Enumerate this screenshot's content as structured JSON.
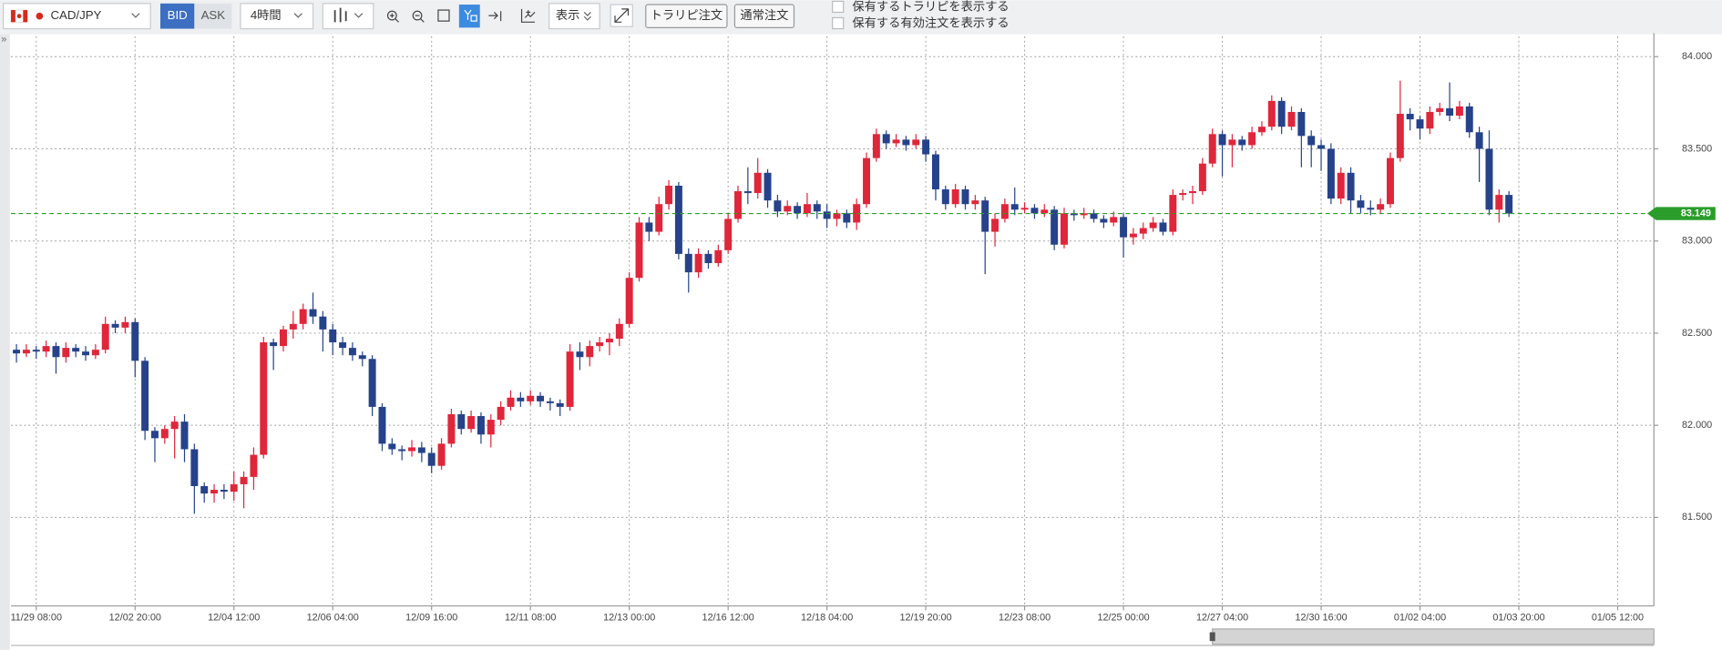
{
  "toolbar": {
    "symbol": "CAD/JPY",
    "bid": "BID",
    "ask": "ASK",
    "timeframe": "4時間",
    "display": "表示",
    "trap_order": "トラリピ注文",
    "normal_order": "通常注文",
    "show_traps": "保有するトラリピを表示する",
    "show_orders": "保有する有効注文を表示する"
  },
  "chart_data": {
    "type": "candlestick",
    "up_color": "#e0263a",
    "down_color": "#25428a",
    "price_color": "#2a9d2a",
    "grid": true,
    "categories": [
      null,
      null,
      "11/29 08:00",
      null,
      null,
      null,
      null,
      null,
      null,
      null,
      null,
      null,
      "12/02 20:00",
      null,
      null,
      null,
      null,
      null,
      null,
      null,
      null,
      null,
      "12/04 12:00",
      null,
      null,
      null,
      null,
      null,
      null,
      null,
      null,
      null,
      "12/06 04:00",
      null,
      null,
      null,
      null,
      null,
      null,
      null,
      null,
      null,
      "12/09 16:00",
      null,
      null,
      null,
      null,
      null,
      null,
      null,
      null,
      null,
      "12/11 08:00",
      null,
      null,
      null,
      null,
      null,
      null,
      null,
      null,
      null,
      "12/13 00:00",
      null,
      null,
      null,
      null,
      null,
      null,
      null,
      null,
      null,
      "12/16 12:00",
      null,
      null,
      null,
      null,
      null,
      null,
      null,
      null,
      null,
      "12/18 04:00",
      null,
      null,
      null,
      null,
      null,
      null,
      null,
      null,
      null,
      "12/19 20:00",
      null,
      null,
      null,
      null,
      null,
      null,
      null,
      null,
      null,
      "12/23 08:00",
      null,
      null,
      null,
      null,
      null,
      null,
      null,
      null,
      null,
      "12/25 00:00",
      null,
      null,
      null,
      null,
      null,
      null,
      null,
      null,
      null,
      "12/27 04:00",
      null,
      null,
      null,
      null,
      null,
      null,
      null,
      null,
      null,
      "12/30 16:00",
      null,
      null,
      null,
      null,
      null,
      null,
      null,
      null,
      null,
      "01/02 04:00",
      null,
      null,
      null,
      null,
      null,
      null,
      null,
      null,
      null,
      "01/03 20:00",
      null,
      null,
      null,
      null,
      null,
      null,
      null,
      null,
      null,
      "01/05 12:00"
    ],
    "open": [
      82.41,
      82.39,
      82.41,
      82.4,
      82.43,
      82.37,
      82.42,
      82.4,
      82.38,
      82.41,
      82.55,
      82.53,
      82.56,
      82.35,
      81.97,
      81.93,
      81.98,
      82.02,
      81.87,
      81.67,
      81.63,
      81.65,
      81.64,
      81.68,
      81.72,
      81.84,
      82.45,
      82.43,
      82.52,
      82.55,
      82.63,
      82.59,
      82.52,
      82.45,
      82.42,
      82.38,
      82.36,
      82.1,
      81.9,
      81.87,
      81.86,
      81.88,
      81.85,
      81.78,
      81.9,
      82.06,
      81.98,
      82.05,
      81.95,
      82.03,
      82.1,
      82.15,
      82.13,
      82.16,
      82.13,
      82.12,
      82.1,
      82.4,
      82.37,
      82.43,
      82.45,
      82.47,
      82.55,
      82.8,
      83.1,
      83.05,
      83.2,
      83.3,
      82.93,
      82.83,
      82.93,
      82.88,
      82.95,
      83.12,
      83.27,
      83.26,
      83.37,
      83.22,
      83.16,
      83.19,
      83.15,
      83.2,
      83.16,
      83.12,
      83.15,
      83.1,
      83.2,
      83.45,
      83.58,
      83.53,
      83.55,
      83.52,
      83.55,
      83.47,
      83.28,
      83.2,
      83.28,
      83.2,
      83.22,
      83.05,
      83.12,
      83.2,
      83.17,
      83.18,
      83.15,
      83.17,
      82.98,
      83.15,
      83.14,
      83.15,
      83.12,
      83.1,
      83.13,
      83.02,
      83.04,
      83.07,
      83.1,
      83.05,
      83.25,
      83.26,
      83.27,
      83.42,
      83.58,
      83.52,
      83.55,
      83.52,
      83.59,
      83.62,
      83.76,
      83.62,
      83.7,
      83.57,
      83.52,
      83.5,
      83.23,
      83.37,
      83.22,
      83.18,
      83.17,
      83.2,
      83.45,
      83.69,
      83.66,
      83.61,
      83.7,
      83.72,
      83.68,
      83.73,
      83.59,
      83.5,
      83.17,
      83.25,
      null,
      null,
      null,
      null,
      null,
      null,
      null,
      null,
      null,
      null,
      null
    ],
    "high": [
      82.44,
      82.44,
      82.43,
      82.46,
      82.45,
      82.45,
      82.44,
      82.43,
      82.44,
      82.59,
      82.57,
      82.59,
      82.58,
      82.37,
      81.99,
      82.0,
      82.05,
      82.06,
      81.9,
      81.69,
      81.68,
      81.68,
      81.75,
      81.75,
      81.88,
      82.48,
      82.47,
      82.54,
      82.62,
      82.66,
      82.72,
      82.62,
      82.55,
      82.48,
      82.45,
      82.4,
      82.38,
      82.12,
      81.93,
      81.89,
      81.92,
      81.91,
      81.88,
      81.93,
      82.09,
      82.08,
      82.08,
      82.07,
      82.06,
      82.13,
      82.19,
      82.18,
      82.19,
      82.18,
      82.15,
      82.14,
      82.44,
      82.45,
      82.46,
      82.48,
      82.5,
      82.58,
      82.83,
      83.13,
      83.13,
      83.24,
      83.33,
      83.32,
      82.96,
      82.96,
      82.95,
      82.98,
      83.15,
      83.3,
      83.4,
      83.45,
      83.39,
      83.25,
      83.22,
      83.21,
      83.26,
      83.22,
      83.2,
      83.17,
      83.17,
      83.23,
      83.48,
      83.61,
      83.6,
      83.58,
      83.57,
      83.58,
      83.57,
      83.49,
      83.3,
      83.31,
      83.3,
      83.25,
      83.24,
      83.15,
      83.23,
      83.29,
      83.21,
      83.2,
      83.2,
      83.19,
      83.18,
      83.17,
      83.18,
      83.17,
      83.14,
      83.16,
      83.15,
      83.07,
      83.1,
      83.13,
      83.12,
      83.28,
      83.28,
      83.3,
      83.45,
      83.61,
      83.6,
      83.58,
      83.57,
      83.62,
      83.65,
      83.79,
      83.78,
      83.73,
      83.72,
      83.6,
      83.55,
      83.53,
      83.4,
      83.4,
      83.25,
      83.22,
      83.23,
      83.48,
      83.87,
      83.72,
      83.68,
      83.73,
      83.75,
      83.86,
      83.76,
      83.75,
      83.62,
      83.6,
      83.28,
      83.27,
      null,
      null,
      null,
      null,
      null,
      null,
      null,
      null,
      null,
      null,
      null
    ],
    "low": [
      82.34,
      82.37,
      82.36,
      82.37,
      82.28,
      82.34,
      82.37,
      82.35,
      82.36,
      82.39,
      82.5,
      82.5,
      82.26,
      81.92,
      81.8,
      81.9,
      81.82,
      81.8,
      81.52,
      81.58,
      81.58,
      81.6,
      81.59,
      81.55,
      81.65,
      81.82,
      82.3,
      82.4,
      82.47,
      82.52,
      82.55,
      82.4,
      82.38,
      82.38,
      82.35,
      82.32,
      82.05,
      81.86,
      81.84,
      81.81,
      81.83,
      81.8,
      81.74,
      81.76,
      81.88,
      81.95,
      81.96,
      81.9,
      81.88,
      82.0,
      82.08,
      82.1,
      82.11,
      82.1,
      82.08,
      82.05,
      82.08,
      82.3,
      82.32,
      82.4,
      82.38,
      82.43,
      82.53,
      82.78,
      83.0,
      83.03,
      83.17,
      82.9,
      82.72,
      82.8,
      82.85,
      82.86,
      82.93,
      83.1,
      83.2,
      83.23,
      83.18,
      83.13,
      83.14,
      83.12,
      83.13,
      83.12,
      83.07,
      83.08,
      83.07,
      83.06,
      83.18,
      83.43,
      83.5,
      83.51,
      83.49,
      83.5,
      83.43,
      83.22,
      83.17,
      83.18,
      83.17,
      83.17,
      82.82,
      82.97,
      83.1,
      83.14,
      83.15,
      83.12,
      83.13,
      82.95,
      82.96,
      83.11,
      83.12,
      83.1,
      83.07,
      83.08,
      82.91,
      82.98,
      83.01,
      83.05,
      83.03,
      83.03,
      83.22,
      83.2,
      83.25,
      83.4,
      83.35,
      83.4,
      83.49,
      83.5,
      83.57,
      83.6,
      83.58,
      83.6,
      83.4,
      83.4,
      83.38,
      83.2,
      83.2,
      83.15,
      83.15,
      83.14,
      83.15,
      83.18,
      83.43,
      83.6,
      83.55,
      83.58,
      83.68,
      83.65,
      83.66,
      83.56,
      83.32,
      83.14,
      83.1,
      83.13,
      null,
      null,
      null,
      null,
      null,
      null,
      null,
      null,
      null,
      null,
      null
    ],
    "close": [
      82.39,
      82.41,
      82.4,
      82.43,
      82.37,
      82.42,
      82.4,
      82.38,
      82.41,
      82.55,
      82.53,
      82.56,
      82.35,
      81.97,
      81.93,
      81.98,
      82.02,
      81.87,
      81.67,
      81.63,
      81.65,
      81.64,
      81.68,
      81.72,
      81.84,
      82.45,
      82.43,
      82.52,
      82.55,
      82.63,
      82.59,
      82.52,
      82.45,
      82.42,
      82.38,
      82.36,
      82.1,
      81.9,
      81.87,
      81.86,
      81.88,
      81.85,
      81.78,
      81.9,
      82.06,
      81.98,
      82.05,
      81.95,
      82.03,
      82.1,
      82.15,
      82.13,
      82.16,
      82.13,
      82.12,
      82.1,
      82.4,
      82.37,
      82.43,
      82.45,
      82.47,
      82.55,
      82.8,
      83.1,
      83.05,
      83.2,
      83.3,
      82.93,
      82.83,
      82.93,
      82.88,
      82.95,
      83.12,
      83.27,
      83.26,
      83.37,
      83.22,
      83.16,
      83.19,
      83.15,
      83.2,
      83.16,
      83.12,
      83.15,
      83.1,
      83.2,
      83.45,
      83.58,
      83.53,
      83.55,
      83.52,
      83.55,
      83.47,
      83.28,
      83.2,
      83.28,
      83.2,
      83.22,
      83.05,
      83.12,
      83.2,
      83.17,
      83.18,
      83.15,
      83.17,
      82.98,
      83.15,
      83.14,
      83.15,
      83.12,
      83.1,
      83.13,
      83.02,
      83.04,
      83.07,
      83.1,
      83.05,
      83.25,
      83.26,
      83.27,
      83.42,
      83.58,
      83.52,
      83.55,
      83.52,
      83.59,
      83.62,
      83.76,
      83.62,
      83.7,
      83.57,
      83.52,
      83.5,
      83.23,
      83.37,
      83.22,
      83.18,
      83.17,
      83.2,
      83.45,
      83.69,
      83.66,
      83.61,
      83.7,
      83.72,
      83.68,
      83.73,
      83.59,
      83.5,
      83.17,
      83.25,
      83.149,
      null,
      null,
      null,
      null,
      null,
      null,
      null,
      null,
      null,
      null,
      null
    ],
    "current_price": 83.149,
    "ylim": [
      81.02,
      84.11
    ],
    "yticks": [
      {
        "value": 81.5,
        "label": "81.500"
      },
      {
        "value": 82,
        "label": "82.000"
      },
      {
        "value": 82.5,
        "label": "82.500"
      },
      {
        "value": 83,
        "label": "83.000"
      },
      {
        "value": 83.5,
        "label": "83.500"
      },
      {
        "value": 84,
        "label": "84.000"
      }
    ]
  }
}
